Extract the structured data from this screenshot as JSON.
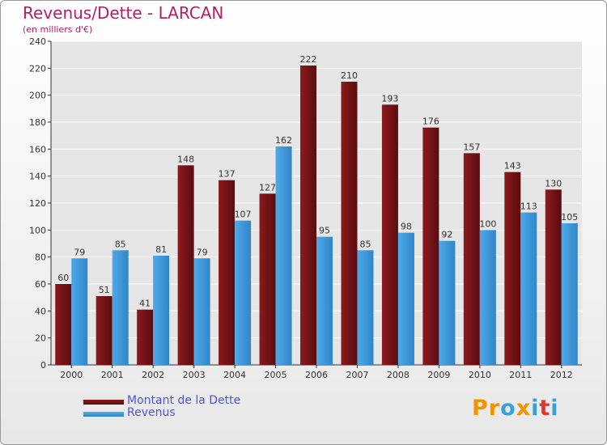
{
  "title": "Revenus/Dette - LARCAN",
  "subtitle": "(en milliers d'€)",
  "logo": {
    "text": "Proxiti",
    "letter_colors": [
      "#f29400",
      "#f29400",
      "#3aa0d8",
      "#f29400",
      "#3aa0d8",
      "#e8332a",
      "#3aa0d8"
    ]
  },
  "chart_data": {
    "type": "bar",
    "title": "Revenus/Dette - LARCAN",
    "subtitle": "(en milliers d'€)",
    "categories": [
      "2000",
      "2001",
      "2002",
      "2003",
      "2004",
      "2005",
      "2006",
      "2007",
      "2008",
      "2009",
      "2010",
      "2011",
      "2012"
    ],
    "series": [
      {
        "name": "Montant de la Dette",
        "color": "#8b1a1c",
        "values": [
          60,
          51,
          41,
          148,
          137,
          127,
          222,
          210,
          193,
          176,
          157,
          143,
          130
        ]
      },
      {
        "name": "Revenus",
        "color": "#4fa9e8",
        "values": [
          79,
          85,
          81,
          79,
          107,
          162,
          95,
          85,
          98,
          92,
          100,
          113,
          105
        ]
      }
    ],
    "ylim": [
      0,
      240
    ],
    "yticks": [
      0,
      20,
      40,
      60,
      80,
      100,
      120,
      140,
      160,
      180,
      200,
      220,
      240
    ],
    "grid": true,
    "legend_position": "bottom-left"
  }
}
